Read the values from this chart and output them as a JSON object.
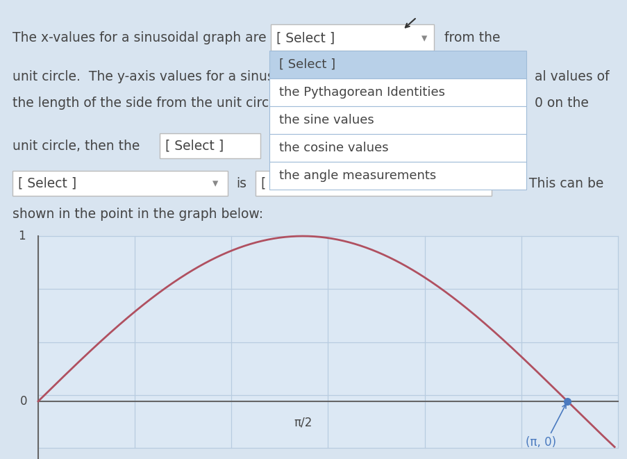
{
  "bg_color": "#d8e4f0",
  "text_color": "#444444",
  "dropdown_blue_highlight": "#b8d0e8",
  "dropdown_bg": "#ffffff",
  "dropdown_border": "#a0bcd8",
  "select_box_bg": "#ffffff",
  "select_box_border": "#bbbbbb",
  "graph_bg": "#dce8f4",
  "grid_color": "#b8cce0",
  "sine_color": "#b05060",
  "point_color": "#4a7abf",
  "axis_color": "#666666",
  "line1": "The x-values for a sinusoidal graph are",
  "line1_suffix": "from the",
  "line2a": "unit circle.  The y-axis values for a sinus",
  "line2b": "al values of",
  "line3a": "the length of the side from the unit circ",
  "line3b": "0 on the",
  "line4a": "unit circle, then the",
  "line6": "shown in the point in the graph below:",
  "select_text": "[ Select ]",
  "is_text": "is",
  "se_text": "[ Se",
  "this_can_be": ". This can be",
  "dropdown_items": [
    "[ Select ]",
    "the Pythagorean Identities",
    "the sine values",
    "the cosine values",
    "the angle measurements"
  ],
  "ytick_1": "1",
  "ytick_0": "0",
  "xtick_pi2": "π/2",
  "point_label": "(π, 0)"
}
